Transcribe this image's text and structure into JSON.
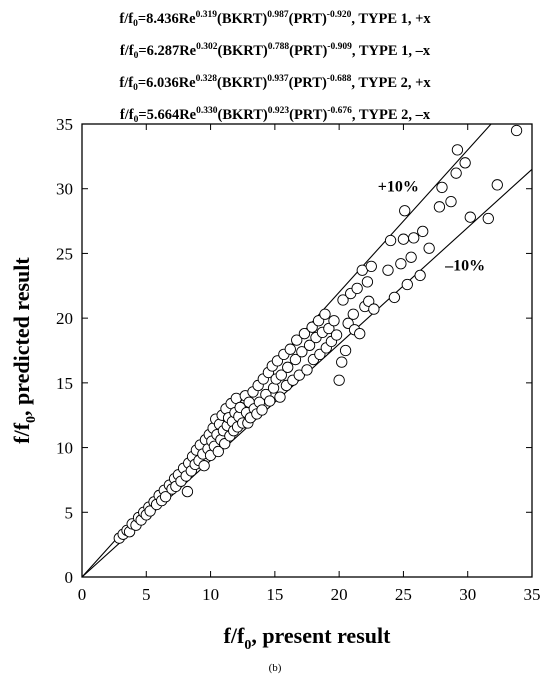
{
  "equations": [
    {
      "lhs": "f/f",
      "lhs_sub": "0",
      "coef": "8.436Re",
      "e1": "0.319",
      "t2": "(BKRT)",
      "e2": "0.987",
      "t3": "(PRT)",
      "e3": "-0.920",
      "tail": ", TYPE 1, +x"
    },
    {
      "lhs": "f/f",
      "lhs_sub": "0",
      "coef": "6.287Re",
      "e1": "0.302",
      "t2": "(BKRT)",
      "e2": "0.788",
      "t3": "(PRT)",
      "e3": "-0.909",
      "tail": ", TYPE 1, –x"
    },
    {
      "lhs": "f/f",
      "lhs_sub": "0",
      "coef": "6.036Re",
      "e1": "0.328",
      "t2": "(BKRT)",
      "e2": "0.937",
      "t3": "(PRT)",
      "e3": "-0.688",
      "tail": ", TYPE 2, +x"
    },
    {
      "lhs": "f/f",
      "lhs_sub": "0",
      "coef": "5.664Re",
      "e1": "0.330",
      "t2": "(BKRT)",
      "e2": "0.923",
      "t3": "(PRT)",
      "e3": "-0.676",
      "tail": ", TYPE 2, –x"
    }
  ],
  "caption": "(b)",
  "chart_data": {
    "type": "scatter",
    "xlabel": {
      "main": "f/f",
      "sub": "0",
      "rest": ", present result"
    },
    "ylabel": {
      "main": "f/f",
      "sub": "0",
      "rest": ", predicted result"
    },
    "xlim": [
      0,
      35
    ],
    "ylim": [
      0,
      35
    ],
    "xticks": [
      0,
      5,
      10,
      15,
      20,
      25,
      30,
      35
    ],
    "yticks": [
      0,
      5,
      10,
      15,
      20,
      25,
      30,
      35
    ],
    "grid": false,
    "reference_lines": [
      {
        "label": "+10%",
        "slope": 1.1,
        "label_at": [
          24.6,
          29.8
        ]
      },
      {
        "label": "–10%",
        "slope": 0.9,
        "label_at": [
          29.8,
          23.7
        ]
      }
    ],
    "marker": "open-circle",
    "points": [
      [
        2.9,
        3.0
      ],
      [
        3.2,
        3.3
      ],
      [
        3.5,
        3.6
      ],
      [
        3.7,
        3.5
      ],
      [
        3.9,
        4.1
      ],
      [
        4.2,
        4.0
      ],
      [
        4.4,
        4.6
      ],
      [
        4.6,
        4.4
      ],
      [
        4.8,
        5.0
      ],
      [
        5.0,
        4.8
      ],
      [
        5.2,
        5.4
      ],
      [
        5.3,
        5.1
      ],
      [
        5.6,
        5.8
      ],
      [
        5.8,
        5.6
      ],
      [
        6.0,
        6.3
      ],
      [
        6.2,
        5.9
      ],
      [
        6.4,
        6.7
      ],
      [
        6.5,
        6.2
      ],
      [
        6.8,
        7.1
      ],
      [
        7.0,
        6.8
      ],
      [
        7.2,
        7.6
      ],
      [
        7.3,
        7.0
      ],
      [
        7.5,
        7.9
      ],
      [
        7.7,
        7.4
      ],
      [
        7.9,
        8.4
      ],
      [
        8.1,
        7.8
      ],
      [
        8.2,
        6.6
      ],
      [
        8.3,
        8.8
      ],
      [
        8.5,
        8.2
      ],
      [
        8.6,
        9.3
      ],
      [
        8.8,
        8.7
      ],
      [
        8.9,
        9.8
      ],
      [
        9.1,
        9.0
      ],
      [
        9.2,
        10.2
      ],
      [
        9.4,
        9.5
      ],
      [
        9.5,
        8.6
      ],
      [
        9.6,
        10.6
      ],
      [
        9.8,
        9.9
      ],
      [
        9.9,
        11.0
      ],
      [
        10.0,
        9.4
      ],
      [
        10.1,
        10.5
      ],
      [
        10.2,
        11.5
      ],
      [
        10.3,
        10.1
      ],
      [
        10.4,
        12.2
      ],
      [
        10.5,
        11.0
      ],
      [
        10.6,
        9.7
      ],
      [
        10.7,
        11.8
      ],
      [
        10.8,
        10.6
      ],
      [
        10.9,
        12.5
      ],
      [
        11.0,
        11.3
      ],
      [
        11.1,
        10.3
      ],
      [
        11.2,
        13.0
      ],
      [
        11.3,
        11.7
      ],
      [
        11.4,
        12.3
      ],
      [
        11.5,
        10.9
      ],
      [
        11.6,
        13.4
      ],
      [
        11.7,
        12.0
      ],
      [
        11.8,
        11.3
      ],
      [
        11.9,
        12.7
      ],
      [
        12.0,
        13.8
      ],
      [
        12.1,
        11.6
      ],
      [
        12.2,
        12.4
      ],
      [
        12.3,
        13.1
      ],
      [
        12.5,
        11.9
      ],
      [
        12.7,
        14.0
      ],
      [
        12.8,
        12.7
      ],
      [
        12.9,
        11.9
      ],
      [
        13.0,
        13.5
      ],
      [
        13.1,
        12.3
      ],
      [
        13.3,
        14.3
      ],
      [
        13.4,
        13.0
      ],
      [
        13.6,
        12.6
      ],
      [
        13.7,
        14.8
      ],
      [
        13.8,
        13.5
      ],
      [
        14.0,
        12.9
      ],
      [
        14.1,
        15.3
      ],
      [
        14.3,
        14.1
      ],
      [
        14.5,
        15.8
      ],
      [
        14.6,
        13.6
      ],
      [
        14.8,
        16.3
      ],
      [
        14.9,
        14.6
      ],
      [
        15.1,
        15.3
      ],
      [
        15.2,
        16.7
      ],
      [
        15.4,
        13.9
      ],
      [
        15.5,
        15.6
      ],
      [
        15.7,
        17.2
      ],
      [
        15.9,
        14.8
      ],
      [
        16.0,
        16.2
      ],
      [
        16.2,
        17.6
      ],
      [
        16.4,
        15.2
      ],
      [
        16.6,
        16.8
      ],
      [
        16.7,
        18.3
      ],
      [
        16.9,
        15.6
      ],
      [
        17.1,
        17.4
      ],
      [
        17.3,
        18.8
      ],
      [
        17.5,
        16.0
      ],
      [
        17.7,
        17.9
      ],
      [
        17.9,
        19.3
      ],
      [
        18.0,
        16.8
      ],
      [
        18.2,
        18.5
      ],
      [
        18.4,
        19.8
      ],
      [
        18.5,
        17.2
      ],
      [
        18.7,
        18.9
      ],
      [
        18.9,
        20.3
      ],
      [
        19.0,
        17.7
      ],
      [
        19.2,
        19.2
      ],
      [
        19.4,
        18.2
      ],
      [
        19.6,
        19.8
      ],
      [
        19.8,
        18.7
      ],
      [
        20.0,
        15.2
      ],
      [
        20.2,
        16.6
      ],
      [
        20.3,
        21.4
      ],
      [
        20.5,
        17.5
      ],
      [
        20.7,
        19.6
      ],
      [
        20.9,
        21.9
      ],
      [
        21.1,
        20.3
      ],
      [
        21.2,
        19.1
      ],
      [
        21.4,
        22.3
      ],
      [
        21.6,
        18.8
      ],
      [
        21.8,
        23.7
      ],
      [
        22.0,
        20.9
      ],
      [
        22.2,
        22.8
      ],
      [
        22.3,
        21.3
      ],
      [
        22.5,
        24.0
      ],
      [
        22.7,
        20.7
      ],
      [
        23.8,
        23.7
      ],
      [
        24.0,
        26.0
      ],
      [
        24.3,
        21.6
      ],
      [
        24.8,
        24.2
      ],
      [
        25.0,
        26.1
      ],
      [
        25.1,
        28.3
      ],
      [
        25.3,
        22.6
      ],
      [
        25.6,
        24.7
      ],
      [
        25.8,
        26.2
      ],
      [
        26.3,
        23.3
      ],
      [
        26.5,
        26.7
      ],
      [
        27.0,
        25.4
      ],
      [
        27.8,
        28.6
      ],
      [
        28.0,
        30.1
      ],
      [
        28.7,
        29.0
      ],
      [
        29.1,
        31.2
      ],
      [
        29.2,
        33.0
      ],
      [
        29.8,
        32.0
      ],
      [
        30.2,
        27.8
      ],
      [
        31.6,
        27.7
      ],
      [
        32.3,
        30.3
      ],
      [
        33.8,
        34.5
      ]
    ]
  }
}
